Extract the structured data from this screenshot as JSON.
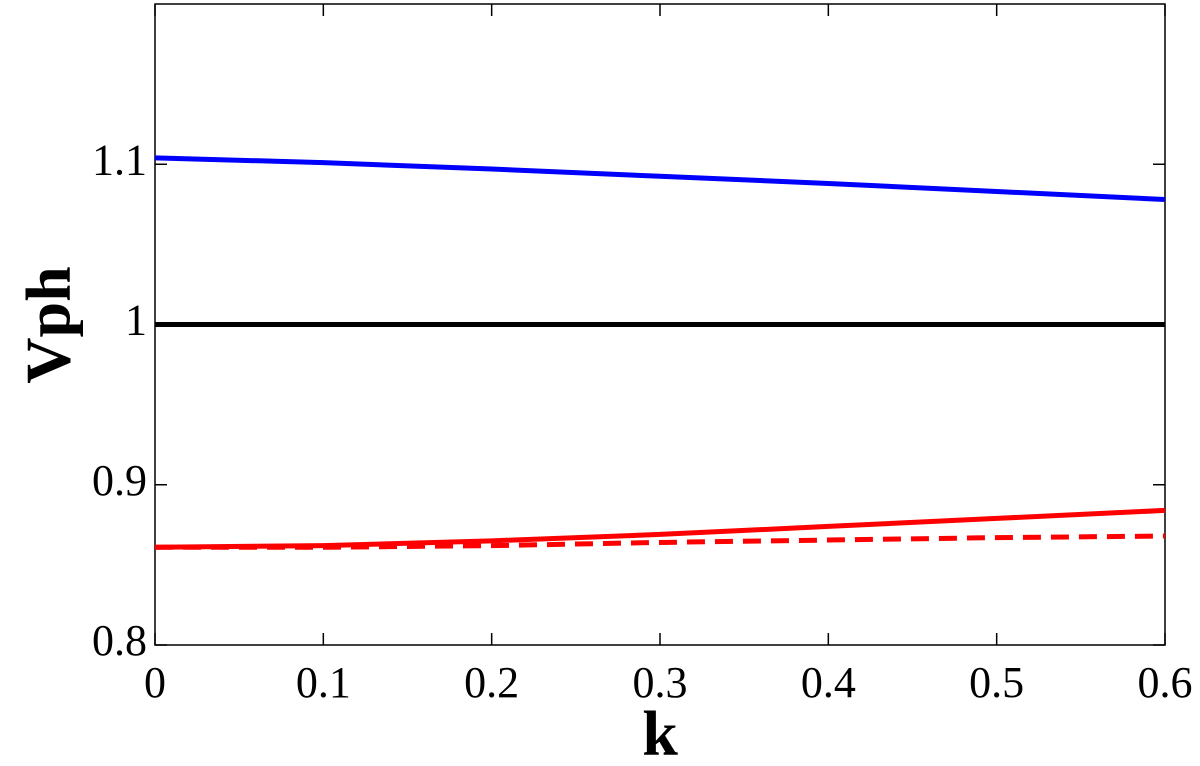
{
  "chart_data": {
    "type": "line",
    "xlabel": "k",
    "ylabel": "Vph",
    "x": [
      0,
      0.1,
      0.2,
      0.3,
      0.4,
      0.5,
      0.6
    ],
    "series": [
      {
        "color": "#0000ff",
        "linestyle": "solid",
        "values": [
          1.104,
          1.101,
          1.097,
          1.0925,
          1.088,
          1.083,
          1.078
        ]
      },
      {
        "color": "#000000",
        "linestyle": "solid",
        "values": [
          1,
          1,
          1,
          1,
          1,
          1,
          1
        ]
      },
      {
        "color": "#ff0000",
        "linestyle": "solid",
        "values": [
          0.861,
          0.862,
          0.865,
          0.869,
          0.874,
          0.879,
          0.884
        ]
      },
      {
        "color": "#ff0000",
        "linestyle": "dashed",
        "values": [
          0.861,
          0.861,
          0.862,
          0.864,
          0.8655,
          0.867,
          0.868
        ]
      }
    ],
    "xlim": [
      0,
      0.6
    ],
    "xticks": [
      0,
      0.1,
      0.2,
      0.3,
      0.4,
      0.5,
      0.6
    ],
    "ylim": [
      0.8,
      1.2
    ],
    "yticks": [
      0.8,
      0.9,
      1,
      1.1
    ],
    "grid": false
  }
}
